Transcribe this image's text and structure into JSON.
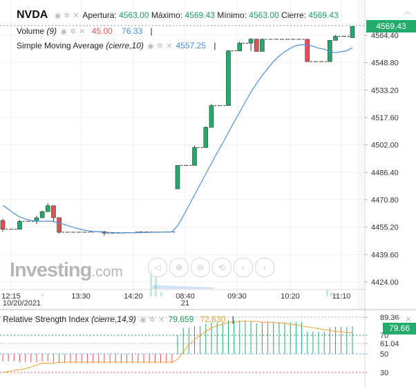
{
  "header": {
    "symbol": "NVDA",
    "open_label": "Apertura:",
    "open": "4563.00",
    "high_label": "Máximo:",
    "high": "4569.43",
    "low_label": "Mínimo:",
    "low": "4563.00",
    "close_label": "Cierre:",
    "close": "4569.43"
  },
  "volume_legend": {
    "name": "Volume",
    "param": "(9)",
    "value1": "45.00",
    "value2": "76.33",
    "color1": "#e05252",
    "color2": "#4a90d9"
  },
  "sma_legend": {
    "name": "Simple Moving Average",
    "param": "(cierre,10)",
    "value": "4557.25",
    "color": "#4a90d9"
  },
  "rsi_legend": {
    "name": "Relative Strength Index",
    "param": "(cierre,14,9)",
    "value1": "79.659",
    "value2": "72.630",
    "color1": "#1a9e5c",
    "color2": "#f0a030"
  },
  "price_tag": "4569.43",
  "rsi_tag": "79.66",
  "logo": {
    "text": "Investing",
    "suffix": ".com"
  },
  "colors": {
    "up": "#22ab6b",
    "down": "#e05252",
    "sma": "#4a90d9",
    "signal": "#f0a030"
  },
  "nav_icons": [
    "audio-icon",
    "zoom-in-icon",
    "zoom-out-icon",
    "zoom-reset-icon",
    "scroll-left-icon",
    "scroll-right-icon"
  ],
  "chart_data": {
    "type": "candlestick",
    "y_axis_ticks": [
      "4564.40",
      "4548.80",
      "4533.20",
      "4517.60",
      "4502.00",
      "4486.40",
      "4470.80",
      "4455.20",
      "4439.60",
      "4424.00"
    ],
    "x_axis_ticks": [
      "12:15",
      "13:30",
      "14:20",
      "08:40",
      "09:30",
      "10:20",
      "11:10"
    ],
    "x_axis_dates": [
      "10/20/2021",
      "21"
    ],
    "ylim": [
      4424.0,
      4569.43
    ],
    "candles": [
      {
        "o": 4459.0,
        "h": 4460.0,
        "l": 4452.5,
        "c": 4454.0
      },
      {
        "o": 4454.0,
        "h": 4454.0,
        "l": 4454.0,
        "c": 4454.0
      },
      {
        "o": 4454.0,
        "h": 4454.0,
        "l": 4454.0,
        "c": 4454.0
      },
      {
        "o": 4454.0,
        "h": 4459.3,
        "l": 4454.0,
        "c": 4458.5
      },
      {
        "o": 4458.5,
        "h": 4458.5,
        "l": 4458.5,
        "c": 4458.5
      },
      {
        "o": 4458.5,
        "h": 4458.5,
        "l": 4458.5,
        "c": 4458.5
      },
      {
        "o": 4458.5,
        "h": 4461.6,
        "l": 4457.0,
        "c": 4460.5
      },
      {
        "o": 4460.5,
        "h": 4464.6,
        "l": 4460.5,
        "c": 4464.0
      },
      {
        "o": 4464.0,
        "h": 4468.8,
        "l": 4464.0,
        "c": 4467.4
      },
      {
        "o": 4467.4,
        "h": 4467.4,
        "l": 4458.0,
        "c": 4460.6
      },
      {
        "o": 4460.6,
        "h": 4460.6,
        "l": 4451.5,
        "c": 4452.3
      },
      {
        "o": 4452.3,
        "h": 4452.3,
        "l": 4452.3,
        "c": 4452.3
      },
      {
        "o": 4452.3,
        "h": 4452.3,
        "l": 4452.3,
        "c": 4452.3
      },
      {
        "o": 4452.3,
        "h": 4452.3,
        "l": 4452.3,
        "c": 4452.3
      },
      {
        "o": 4452.3,
        "h": 4452.3,
        "l": 4452.3,
        "c": 4452.3
      },
      {
        "o": 4452.3,
        "h": 4452.3,
        "l": 4452.3,
        "c": 4452.3
      },
      {
        "o": 4452.3,
        "h": 4452.8,
        "l": 4452.0,
        "c": 4452.6
      },
      {
        "o": 4452.6,
        "h": 4452.6,
        "l": 4452.6,
        "c": 4452.6
      },
      {
        "o": 4452.6,
        "h": 4453.0,
        "l": 4450.4,
        "c": 4451.8
      },
      {
        "o": 4451.8,
        "h": 4451.8,
        "l": 4451.8,
        "c": 4451.8
      },
      {
        "o": 4451.8,
        "h": 4451.8,
        "l": 4451.8,
        "c": 4451.8
      },
      {
        "o": 4451.8,
        "h": 4451.8,
        "l": 4451.8,
        "c": 4451.8
      },
      {
        "o": 4451.8,
        "h": 4452.4,
        "l": 4451.8,
        "c": 4452.0
      },
      {
        "o": 4452.0,
        "h": 4452.0,
        "l": 4452.0,
        "c": 4452.0
      },
      {
        "o": 4452.0,
        "h": 4452.5,
        "l": 4451.8,
        "c": 4452.4
      },
      {
        "o": 4452.4,
        "h": 4452.4,
        "l": 4452.4,
        "c": 4452.4
      },
      {
        "o": 4452.4,
        "h": 4452.4,
        "l": 4452.4,
        "c": 4452.4
      },
      {
        "o": 4452.4,
        "h": 4452.4,
        "l": 4452.4,
        "c": 4452.4
      },
      {
        "o": 4452.4,
        "h": 4452.4,
        "l": 4452.4,
        "c": 4452.4
      },
      {
        "o": 4452.4,
        "h": 4452.4,
        "l": 4452.4,
        "c": 4452.4
      },
      {
        "o": 4452.4,
        "h": 4452.4,
        "l": 4452.4,
        "c": 4452.4
      },
      {
        "o": 4477.0,
        "h": 4490.3,
        "l": 4477.0,
        "c": 4490.3
      },
      {
        "o": 4490.3,
        "h": 4490.3,
        "l": 4490.3,
        "c": 4490.3
      },
      {
        "o": 4490.3,
        "h": 4490.3,
        "l": 4490.3,
        "c": 4490.3
      },
      {
        "o": 4490.3,
        "h": 4501.6,
        "l": 4490.3,
        "c": 4500.5
      },
      {
        "o": 4500.5,
        "h": 4500.5,
        "l": 4500.5,
        "c": 4500.5
      },
      {
        "o": 4500.5,
        "h": 4512.6,
        "l": 4500.5,
        "c": 4512.0
      },
      {
        "o": 4512.0,
        "h": 4525.2,
        "l": 4512.0,
        "c": 4524.4
      },
      {
        "o": 4524.4,
        "h": 4524.4,
        "l": 4524.4,
        "c": 4524.4
      },
      {
        "o": 4524.4,
        "h": 4524.4,
        "l": 4524.4,
        "c": 4524.4
      },
      {
        "o": 4524.4,
        "h": 4556.0,
        "l": 4524.4,
        "c": 4555.5
      },
      {
        "o": 4555.5,
        "h": 4555.5,
        "l": 4555.5,
        "c": 4555.5
      },
      {
        "o": 4555.5,
        "h": 4560.9,
        "l": 4555.5,
        "c": 4559.9
      },
      {
        "o": 4559.9,
        "h": 4559.9,
        "l": 4559.9,
        "c": 4559.9
      },
      {
        "o": 4559.9,
        "h": 4562.7,
        "l": 4555.5,
        "c": 4562.2
      },
      {
        "o": 4562.2,
        "h": 4562.2,
        "l": 4555.0,
        "c": 4555.2
      },
      {
        "o": 4555.2,
        "h": 4562.6,
        "l": 4555.2,
        "c": 4562.1
      },
      {
        "o": 4562.1,
        "h": 4562.1,
        "l": 4562.1,
        "c": 4562.1
      },
      {
        "o": 4562.1,
        "h": 4562.1,
        "l": 4562.1,
        "c": 4562.1
      },
      {
        "o": 4562.1,
        "h": 4562.1,
        "l": 4562.1,
        "c": 4562.1
      },
      {
        "o": 4562.1,
        "h": 4562.1,
        "l": 4562.1,
        "c": 4562.1
      },
      {
        "o": 4562.1,
        "h": 4562.1,
        "l": 4562.1,
        "c": 4562.1
      },
      {
        "o": 4562.1,
        "h": 4562.1,
        "l": 4562.1,
        "c": 4562.1
      },
      {
        "o": 4562.1,
        "h": 4562.1,
        "l": 4562.1,
        "c": 4562.1
      },
      {
        "o": 4562.1,
        "h": 4562.1,
        "l": 4549.4,
        "c": 4549.4
      },
      {
        "o": 4549.4,
        "h": 4549.4,
        "l": 4549.4,
        "c": 4549.4
      },
      {
        "o": 4549.4,
        "h": 4549.4,
        "l": 4549.4,
        "c": 4549.4
      },
      {
        "o": 4549.4,
        "h": 4549.4,
        "l": 4549.4,
        "c": 4549.4
      },
      {
        "o": 4549.4,
        "h": 4561.5,
        "l": 4549.4,
        "c": 4561.5
      },
      {
        "o": 4561.5,
        "h": 4564.5,
        "l": 4561.5,
        "c": 4563.8
      },
      {
        "o": 4563.8,
        "h": 4563.8,
        "l": 4563.8,
        "c": 4563.8
      },
      {
        "o": 4563.8,
        "h": 4563.8,
        "l": 4563.8,
        "c": 4563.8
      },
      {
        "o": 4563.0,
        "h": 4569.43,
        "l": 4563.0,
        "c": 4569.43
      }
    ],
    "sma": [
      4467.5,
      4465.5,
      4463.0,
      4461.0,
      4459.8,
      4459.0,
      4458.6,
      4458.5,
      4458.6,
      4458.5,
      4457.6,
      4456.6,
      4455.6,
      4454.6,
      4453.8,
      4453.2,
      4452.7,
      4452.5,
      4452.3,
      4452.2,
      4452.1,
      4452.0,
      4452.0,
      4452.0,
      4452.0,
      4452.1,
      4452.2,
      4452.3,
      4452.3,
      4452.4,
      4452.5,
      4456.0,
      4461.5,
      4467.5,
      4473.5,
      4479.5,
      4485.5,
      4491.5,
      4497.5,
      4503.0,
      4509.0,
      4515.0,
      4520.5,
      4526.5,
      4532.0,
      4537.0,
      4541.5,
      4545.5,
      4549.5,
      4552.5,
      4555.0,
      4557.0,
      4558.5,
      4559.0,
      4559.0,
      4558.2,
      4557.0,
      4556.5,
      4555.0,
      4554.5,
      4555.0,
      4555.6,
      4557.25
    ],
    "rsi_series": {
      "rsi_hist_start": 50,
      "rsi_ticks": [
        "89.36",
        "70",
        "61.04",
        "50",
        "30"
      ],
      "rsi": [
        42,
        42,
        42,
        41,
        41,
        41,
        41,
        42,
        42,
        41,
        40,
        40,
        40,
        40,
        40,
        40,
        40,
        40,
        40,
        40,
        40,
        40,
        40,
        40,
        40,
        40,
        40,
        40,
        40,
        40,
        40,
        70,
        78,
        78,
        80,
        80,
        82,
        84,
        84,
        84,
        86,
        86,
        86,
        86,
        85,
        83,
        84,
        84,
        84,
        84,
        84,
        84,
        84,
        84,
        74,
        74,
        74,
        74,
        78,
        79,
        79,
        79,
        79.659
      ],
      "signal": [
        30,
        31,
        32,
        33,
        34,
        36,
        38,
        40,
        40,
        40,
        41,
        41,
        41,
        41,
        41,
        41,
        41,
        41,
        41,
        41,
        41,
        41,
        41,
        41,
        41,
        41,
        41,
        41,
        41,
        41,
        41,
        44,
        52,
        60,
        65,
        70,
        74,
        78,
        80,
        82,
        84,
        84,
        85,
        85,
        85,
        85,
        84,
        84,
        84,
        83,
        83,
        82,
        81,
        80,
        79,
        78,
        77,
        76,
        75,
        74,
        74,
        73,
        72.63
      ]
    }
  }
}
